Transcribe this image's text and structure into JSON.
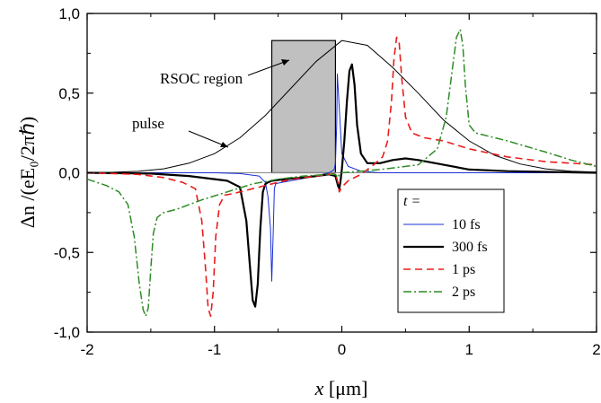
{
  "chart_data": {
    "type": "line",
    "xlabel_var": "x",
    "xlabel_unit": " [μm]",
    "ylabel": "Δn /(eE₀/2πℏ)",
    "xlim": [
      -2,
      2
    ],
    "ylim": [
      -1.0,
      1.0
    ],
    "x_ticks": [
      "-2",
      "-1",
      "0",
      "1",
      "2"
    ],
    "y_ticks": [
      "-1,0",
      "-0,5",
      "0,0",
      "0,5",
      "1,0"
    ],
    "grid": false,
    "legend_position": "bottom-right",
    "legend_title": "t =",
    "series": [
      {
        "name": "10 fs",
        "color": "#1a2fd6",
        "dash": "solid",
        "x": [
          -2,
          -1.0,
          -0.8,
          -0.65,
          -0.6,
          -0.58,
          -0.56,
          -0.55,
          -0.54,
          -0.53,
          -0.52,
          -0.5,
          -0.4,
          -0.3,
          -0.2,
          -0.1,
          -0.06,
          -0.05,
          -0.04,
          -0.035,
          -0.02,
          0.0,
          0.05,
          0.15,
          0.3,
          1.0,
          2.0
        ],
        "y": [
          0,
          0,
          -0.005,
          -0.02,
          -0.06,
          -0.15,
          -0.35,
          -0.68,
          -0.4,
          -0.1,
          -0.07,
          -0.065,
          -0.05,
          -0.035,
          -0.02,
          0.0,
          0.02,
          0.06,
          0.3,
          0.62,
          0.4,
          0.12,
          0.04,
          0.01,
          0.0,
          0.0,
          0.0
        ]
      },
      {
        "name": "300 fs",
        "color": "#000000",
        "dash": "solid",
        "x": [
          -2,
          -1.5,
          -1.2,
          -1.0,
          -0.9,
          -0.8,
          -0.75,
          -0.72,
          -0.7,
          -0.68,
          -0.66,
          -0.64,
          -0.62,
          -0.6,
          -0.58,
          -0.55,
          -0.45,
          -0.3,
          -0.2,
          -0.1,
          -0.05,
          -0.03,
          -0.02,
          -0.01,
          0.0,
          0.02,
          0.04,
          0.06,
          0.08,
          0.1,
          0.12,
          0.15,
          0.2,
          0.3,
          0.4,
          0.5,
          0.6,
          0.8,
          1.0,
          1.3,
          2.0
        ],
        "y": [
          0,
          -0.005,
          -0.02,
          -0.04,
          -0.05,
          -0.09,
          -0.3,
          -0.6,
          -0.8,
          -0.84,
          -0.7,
          -0.35,
          -0.12,
          -0.07,
          -0.06,
          -0.05,
          -0.04,
          -0.03,
          -0.02,
          -0.01,
          -0.02,
          -0.08,
          -0.1,
          -0.05,
          0.02,
          0.2,
          0.45,
          0.64,
          0.68,
          0.55,
          0.3,
          0.12,
          0.06,
          0.06,
          0.08,
          0.09,
          0.08,
          0.05,
          0.02,
          0.01,
          0.0
        ]
      },
      {
        "name": "1 ps",
        "color": "#ea1c1c",
        "dash": "8,5",
        "x": [
          -2,
          -1.6,
          -1.4,
          -1.25,
          -1.15,
          -1.1,
          -1.07,
          -1.05,
          -1.03,
          -1.01,
          -0.99,
          -0.96,
          -0.92,
          -0.85,
          -0.75,
          -0.6,
          -0.45,
          -0.3,
          -0.2,
          -0.1,
          -0.05,
          -0.03,
          -0.02,
          0.0,
          0.05,
          0.15,
          0.25,
          0.32,
          0.36,
          0.39,
          0.41,
          0.43,
          0.45,
          0.47,
          0.5,
          0.55,
          0.65,
          0.8,
          1.0,
          1.3,
          1.6,
          2.0
        ],
        "y": [
          0,
          -0.01,
          -0.03,
          -0.06,
          -0.1,
          -0.3,
          -0.6,
          -0.85,
          -0.9,
          -0.75,
          -0.4,
          -0.2,
          -0.14,
          -0.13,
          -0.11,
          -0.08,
          -0.05,
          -0.03,
          -0.02,
          -0.01,
          -0.005,
          -0.06,
          -0.12,
          -0.09,
          -0.05,
          -0.01,
          0.05,
          0.1,
          0.2,
          0.45,
          0.72,
          0.85,
          0.82,
          0.6,
          0.35,
          0.25,
          0.22,
          0.2,
          0.15,
          0.1,
          0.07,
          0.05
        ]
      },
      {
        "name": "2 ps",
        "color": "#2e8b25",
        "dash": "9,3,2,3",
        "x": [
          -2,
          -1.85,
          -1.75,
          -1.68,
          -1.63,
          -1.59,
          -1.56,
          -1.54,
          -1.52,
          -1.5,
          -1.48,
          -1.45,
          -1.4,
          -1.3,
          -1.1,
          -0.9,
          -0.7,
          -0.5,
          -0.3,
          -0.1,
          -0.05,
          -0.03,
          -0.02,
          0.0,
          0.3,
          0.6,
          0.75,
          0.82,
          0.86,
          0.9,
          0.93,
          0.95,
          0.97,
          1.0,
          1.05,
          1.1,
          1.3,
          1.6,
          1.8,
          2.0
        ],
        "y": [
          -0.04,
          -0.08,
          -0.12,
          -0.2,
          -0.4,
          -0.7,
          -0.86,
          -0.9,
          -0.85,
          -0.6,
          -0.38,
          -0.28,
          -0.25,
          -0.23,
          -0.17,
          -0.12,
          -0.07,
          -0.04,
          -0.02,
          -0.01,
          -0.01,
          -0.03,
          -0.01,
          0.0,
          0.02,
          0.05,
          0.15,
          0.35,
          0.6,
          0.85,
          0.9,
          0.8,
          0.55,
          0.3,
          0.25,
          0.24,
          0.2,
          0.13,
          0.08,
          0.04
        ]
      }
    ],
    "pulse": {
      "label": "pulse",
      "color": "#000000",
      "x": [
        -2,
        -1.8,
        -1.6,
        -1.4,
        -1.2,
        -1.0,
        -0.8,
        -0.6,
        -0.4,
        -0.2,
        0.0,
        0.2,
        0.4,
        0.6,
        0.8,
        1.0,
        1.2,
        1.4,
        1.6,
        1.8,
        2.0
      ],
      "y": [
        0.0,
        0.003,
        0.009,
        0.025,
        0.06,
        0.12,
        0.22,
        0.36,
        0.53,
        0.7,
        0.83,
        0.8,
        0.66,
        0.5,
        0.33,
        0.2,
        0.11,
        0.055,
        0.025,
        0.01,
        0.004
      ]
    },
    "rsoc_region": {
      "label": "RSOC region",
      "x_range": [
        -0.55,
        -0.05
      ],
      "y_top": 0.83,
      "fill": "#c0c0c0"
    },
    "baseline": {
      "y": 0,
      "color": "#888888"
    }
  }
}
